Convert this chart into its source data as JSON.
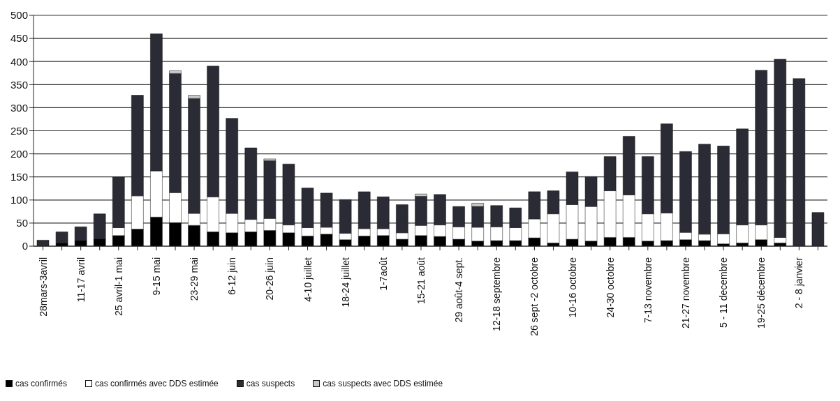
{
  "chart_data": {
    "type": "bar",
    "stacked": true,
    "categories": [
      "28mars-3avril",
      null,
      "11-17 avril",
      null,
      "25 avril-1 mai",
      null,
      "9-15 mai",
      null,
      "23-29 mai",
      null,
      "6-12 juin",
      null,
      "20-26 juin",
      null,
      "4-10 juillet",
      null,
      "18-24 juillet",
      null,
      "1-7août",
      null,
      "15-21 août",
      null,
      "29 août-4 sept.",
      null,
      "12-18 septembre",
      null,
      "26 sept -2 octobre",
      null,
      "10-16 octobre",
      null,
      "24-30 octobre",
      null,
      "7-13 novembre",
      null,
      "21-27 novembre",
      null,
      "5 - 11 decembre",
      null,
      "19-25 décembre",
      null,
      "2 - 8 janvier",
      null
    ],
    "series": [
      {
        "name": "cas confirmés",
        "color": "#000000",
        "values": [
          null,
          7,
          12,
          16,
          23,
          37,
          63,
          51,
          45,
          31,
          29,
          31,
          34,
          29,
          22,
          26,
          14,
          22,
          23,
          15,
          23,
          21,
          15,
          11,
          12,
          12,
          18,
          7,
          15,
          11,
          19,
          19,
          11,
          12,
          14,
          12,
          5,
          7,
          14,
          7,
          0,
          0
        ]
      },
      {
        "name": "cas confirmés avec DDS estimée",
        "color": "#ffffff",
        "values": [
          0,
          0,
          0,
          0,
          17,
          72,
          100,
          65,
          26,
          76,
          42,
          27,
          26,
          17,
          18,
          15,
          14,
          16,
          15,
          14,
          22,
          25,
          27,
          30,
          30,
          28,
          41,
          63,
          75,
          75,
          101,
          92,
          59,
          60,
          16,
          14,
          22,
          39,
          32,
          12,
          0,
          0
        ]
      },
      {
        "name": "cas suspects",
        "color": "#2b2b36",
        "values": [
          13,
          24,
          30,
          54,
          110,
          218,
          297,
          258,
          249,
          283,
          206,
          155,
          125,
          132,
          86,
          74,
          73,
          80,
          69,
          61,
          63,
          66,
          44,
          45,
          46,
          43,
          59,
          50,
          71,
          65,
          74,
          127,
          124,
          193,
          175,
          195,
          190,
          208,
          335,
          386,
          363,
          73
        ]
      },
      {
        "name": "cas suspects avec DDS estimée",
        "color": "#c8c8c8",
        "values": [
          0,
          0,
          0,
          0,
          0,
          0,
          0,
          6,
          7,
          0,
          0,
          0,
          4,
          0,
          0,
          0,
          0,
          0,
          0,
          0,
          5,
          0,
          0,
          7,
          0,
          0,
          0,
          0,
          0,
          0,
          0,
          0,
          0,
          0,
          0,
          0,
          0,
          0,
          0,
          0,
          0,
          0
        ]
      }
    ],
    "ylim": [
      0,
      500
    ],
    "yticks": [
      0,
      50,
      100,
      150,
      200,
      250,
      300,
      350,
      400,
      450,
      500
    ],
    "grid": "y",
    "legend": "bottom left"
  }
}
